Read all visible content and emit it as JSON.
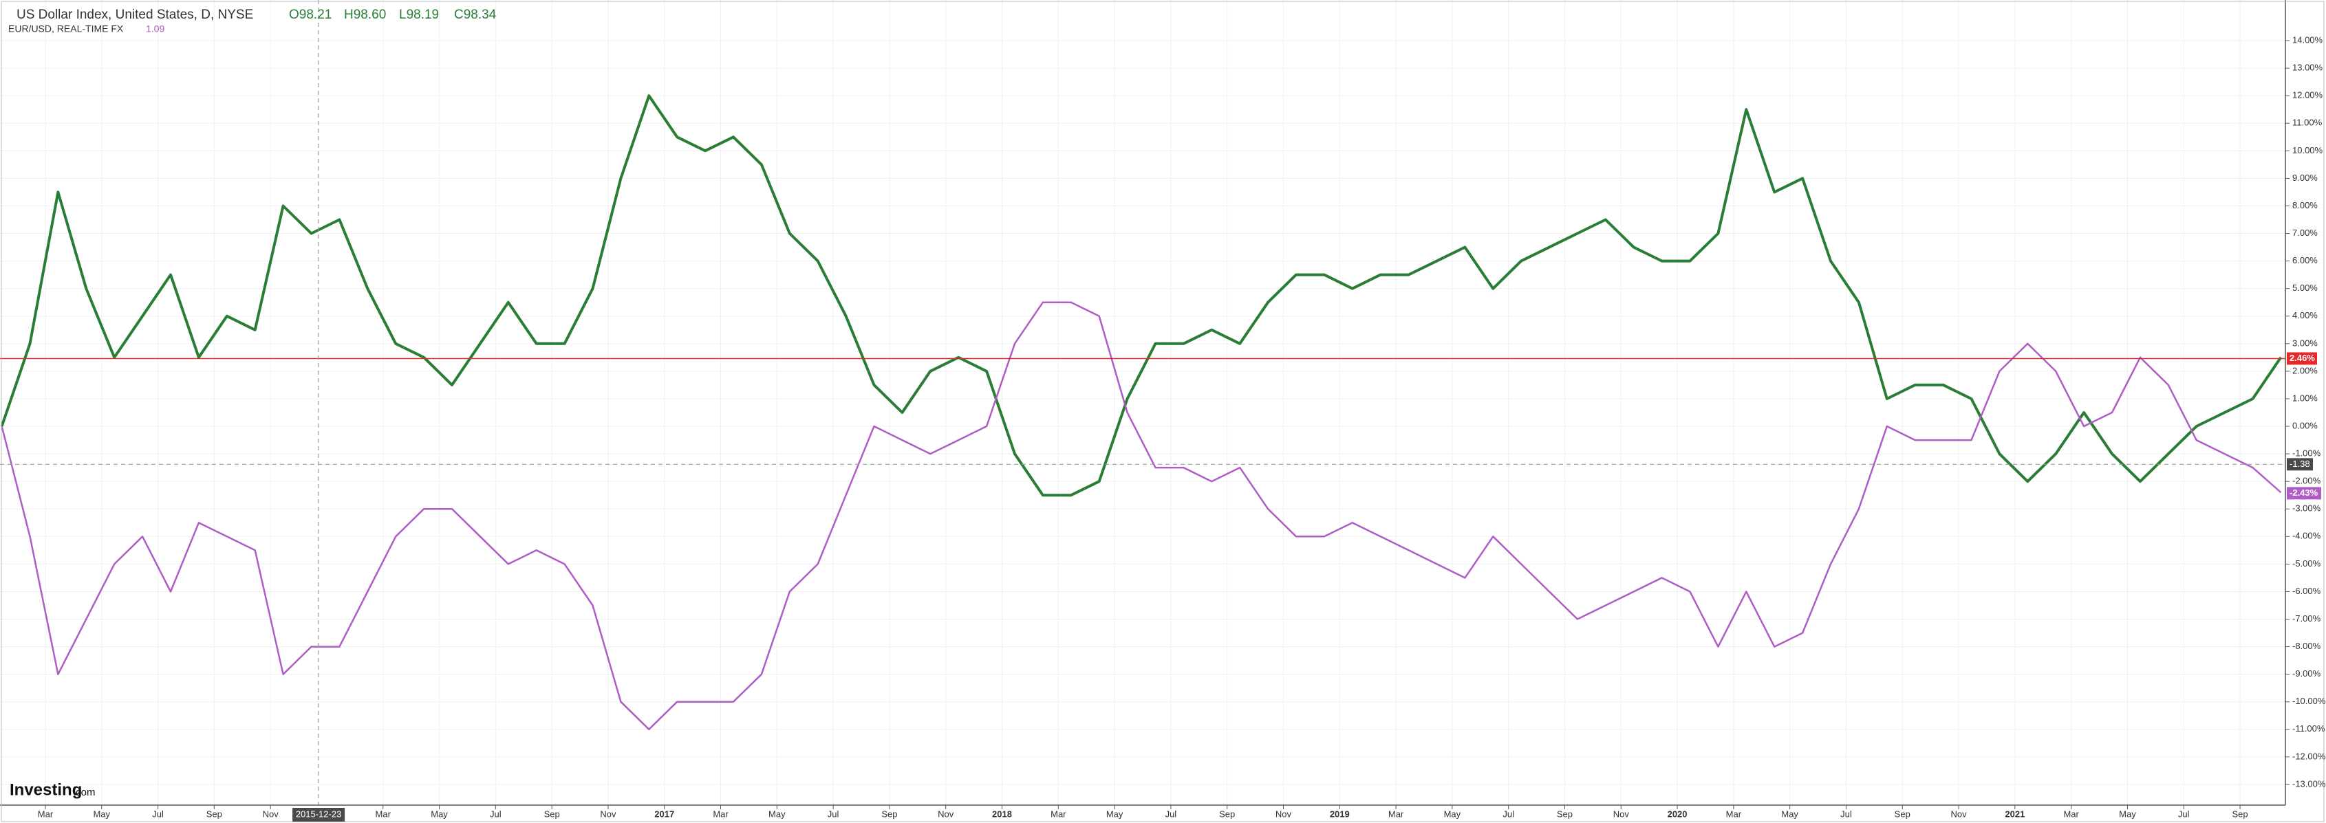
{
  "chart_data": {
    "type": "line",
    "title": "US Dollar Index, United States, D, NYSE",
    "ohlc": [
      "O98.21",
      "H98.60",
      "L98.19",
      "C98.34"
    ],
    "compare_label": "EUR/USD, REAL-TIME FX",
    "compare_value": "1.09",
    "logo": "Investing",
    "logo_suffix": ".com",
    "x": [
      "2015-01",
      "2015-02",
      "2015-03",
      "2015-04",
      "2015-05",
      "2015-06",
      "2015-07",
      "2015-08",
      "2015-09",
      "2015-10",
      "2015-11",
      "2015-12",
      "2016-01",
      "2016-02",
      "2016-03",
      "2016-04",
      "2016-05",
      "2016-06",
      "2016-07",
      "2016-08",
      "2016-09",
      "2016-10",
      "2016-11",
      "2016-12",
      "2017-01",
      "2017-02",
      "2017-03",
      "2017-04",
      "2017-05",
      "2017-06",
      "2017-07",
      "2017-08",
      "2017-09",
      "2017-10",
      "2017-11",
      "2017-12",
      "2018-01",
      "2018-02",
      "2018-03",
      "2018-04",
      "2018-05",
      "2018-06",
      "2018-07",
      "2018-08",
      "2018-09",
      "2018-10",
      "2018-11",
      "2018-12",
      "2019-01",
      "2019-02",
      "2019-03",
      "2019-04",
      "2019-05",
      "2019-06",
      "2019-07",
      "2019-08",
      "2019-09",
      "2019-10",
      "2019-11",
      "2019-12",
      "2020-01",
      "2020-02",
      "2020-03",
      "2020-04",
      "2020-05",
      "2020-06",
      "2020-07",
      "2020-08",
      "2020-09",
      "2020-10",
      "2020-11",
      "2020-12",
      "2021-01",
      "2021-02",
      "2021-03",
      "2021-04",
      "2021-05",
      "2021-06",
      "2021-07",
      "2021-08",
      "2021-09",
      "2021-10"
    ],
    "series": [
      {
        "name": "US Dollar Index",
        "color": "#2a7d35",
        "values": [
          0,
          3,
          8.5,
          5,
          2.5,
          4,
          5.5,
          2.5,
          4,
          3.5,
          8,
          7,
          7.5,
          5,
          3,
          2.5,
          1.5,
          3,
          4.5,
          3,
          3,
          5,
          9,
          12,
          10.5,
          10,
          10.5,
          9.5,
          7,
          6,
          4,
          1.5,
          0.5,
          2,
          2.5,
          2,
          -1,
          -2.5,
          -2.5,
          -2,
          1,
          3,
          3,
          3.5,
          3,
          4.5,
          5.5,
          5.5,
          5,
          5.5,
          5.5,
          6,
          6.5,
          5,
          6,
          6.5,
          7,
          7.5,
          6.5,
          6,
          6,
          7,
          11.5,
          8.5,
          9,
          6,
          4.5,
          1,
          1.5,
          1.5,
          1,
          -1,
          -2,
          -1,
          0.5,
          -1,
          -2,
          -1,
          0,
          0.5,
          1,
          2.5
        ]
      },
      {
        "name": "EUR/USD",
        "color": "#b05cc6",
        "values": [
          0,
          -4,
          -9,
          -7,
          -5,
          -4,
          -6,
          -3.5,
          -4,
          -4.5,
          -9,
          -8,
          -8,
          -6,
          -4,
          -3,
          -3,
          -4,
          -5,
          -4.5,
          -5,
          -6.5,
          -10,
          -11,
          -10,
          -10,
          -10,
          -9,
          -6,
          -5,
          -2.5,
          0,
          -0.5,
          -1,
          -0.5,
          0,
          3,
          4.5,
          4.5,
          4,
          0.5,
          -1.5,
          -1.5,
          -2,
          -1.5,
          -3,
          -4,
          -4,
          -3.5,
          -4,
          -4.5,
          -5,
          -5.5,
          -4,
          -5,
          -6,
          -7,
          -6.5,
          -6,
          -5.5,
          -6,
          -8,
          -6,
          -8,
          -7.5,
          -5,
          -3,
          0,
          -0.5,
          -0.5,
          -0.5,
          2,
          3,
          2,
          0,
          0.5,
          2.5,
          1.5,
          -0.5,
          -1,
          -1.5,
          -2.4
        ]
      }
    ],
    "xlim": [
      "2015-01-13",
      "2021-10-20"
    ],
    "xticks": [
      {
        "value": "2015-03-01",
        "label": "Mar"
      },
      {
        "value": "2015-05-01",
        "label": "May"
      },
      {
        "value": "2015-07-01",
        "label": "Jul"
      },
      {
        "value": "2015-09-01",
        "label": "Sep"
      },
      {
        "value": "2015-11-01",
        "label": "Nov"
      },
      {
        "value": "2016-03-01",
        "label": "Mar"
      },
      {
        "value": "2016-05-01",
        "label": "May"
      },
      {
        "value": "2016-07-01",
        "label": "Jul"
      },
      {
        "value": "2016-09-01",
        "label": "Sep"
      },
      {
        "value": "2016-11-01",
        "label": "Nov"
      },
      {
        "value": "2017-01-01",
        "label": "2017"
      },
      {
        "value": "2017-03-01",
        "label": "Mar"
      },
      {
        "value": "2017-05-01",
        "label": "May"
      },
      {
        "value": "2017-07-01",
        "label": "Jul"
      },
      {
        "value": "2017-09-01",
        "label": "Sep"
      },
      {
        "value": "2017-11-01",
        "label": "Nov"
      },
      {
        "value": "2018-01-01",
        "label": "2018"
      },
      {
        "value": "2018-03-01",
        "label": "Mar"
      },
      {
        "value": "2018-05-01",
        "label": "May"
      },
      {
        "value": "2018-07-01",
        "label": "Jul"
      },
      {
        "value": "2018-09-01",
        "label": "Sep"
      },
      {
        "value": "2018-11-01",
        "label": "Nov"
      },
      {
        "value": "2019-01-01",
        "label": "2019"
      },
      {
        "value": "2019-03-01",
        "label": "Mar"
      },
      {
        "value": "2019-05-01",
        "label": "May"
      },
      {
        "value": "2019-07-01",
        "label": "Jul"
      },
      {
        "value": "2019-09-01",
        "label": "Sep"
      },
      {
        "value": "2019-11-01",
        "label": "Nov"
      },
      {
        "value": "2020-01-01",
        "label": "2020"
      },
      {
        "value": "2020-03-01",
        "label": "Mar"
      },
      {
        "value": "2020-05-01",
        "label": "May"
      },
      {
        "value": "2020-07-01",
        "label": "Jul"
      },
      {
        "value": "2020-09-01",
        "label": "Sep"
      },
      {
        "value": "2020-11-01",
        "label": "Nov"
      },
      {
        "value": "2021-01-01",
        "label": "2021"
      },
      {
        "value": "2021-03-01",
        "label": "Mar"
      },
      {
        "value": "2021-05-01",
        "label": "May"
      },
      {
        "value": "2021-07-01",
        "label": "Jul"
      },
      {
        "value": "2021-09-01",
        "label": "Sep"
      }
    ],
    "ylim": [
      -13.75,
      14.5
    ],
    "yticks": [
      {
        "value": 14,
        "label": "14.00%"
      },
      {
        "value": 13,
        "label": "13.00%"
      },
      {
        "value": 12,
        "label": "12.00%"
      },
      {
        "value": 11,
        "label": "11.00%"
      },
      {
        "value": 10,
        "label": "10.00%"
      },
      {
        "value": 9,
        "label": "9.00%"
      },
      {
        "value": 8,
        "label": "8.00%"
      },
      {
        "value": 7,
        "label": "7.00%"
      },
      {
        "value": 6,
        "label": "6.00%"
      },
      {
        "value": 5,
        "label": "5.00%"
      },
      {
        "value": 4,
        "label": "4.00%"
      },
      {
        "value": 3,
        "label": "3.00%"
      },
      {
        "value": 2,
        "label": "2.00%"
      },
      {
        "value": 1,
        "label": "1.00%"
      },
      {
        "value": 0,
        "label": "0.00%"
      },
      {
        "value": -1,
        "label": "-1.00%"
      },
      {
        "value": -2,
        "label": "-2.00%"
      },
      {
        "value": -3,
        "label": "-3.00%"
      },
      {
        "value": -4,
        "label": "-4.00%"
      },
      {
        "value": -5,
        "label": "-5.00%"
      },
      {
        "value": -6,
        "label": "-6.00%"
      },
      {
        "value": -7,
        "label": "-7.00%"
      },
      {
        "value": -8,
        "label": "-8.00%"
      },
      {
        "value": -9,
        "label": "-9.00%"
      },
      {
        "value": -10,
        "label": "-10.00%"
      },
      {
        "value": -11,
        "label": "-11.00%"
      },
      {
        "value": -12,
        "label": "-12.00%"
      },
      {
        "value": -13,
        "label": "-13.00%"
      }
    ],
    "grid": true,
    "price_line": {
      "value": 2.46,
      "label": "2.46%",
      "color": "#e8292b"
    },
    "last_value": {
      "value": -2.43,
      "label": "-2.43%"
    },
    "crosshair": {
      "x": "2015-12-23",
      "y": -1.38,
      "y_label": "-1.38"
    }
  }
}
